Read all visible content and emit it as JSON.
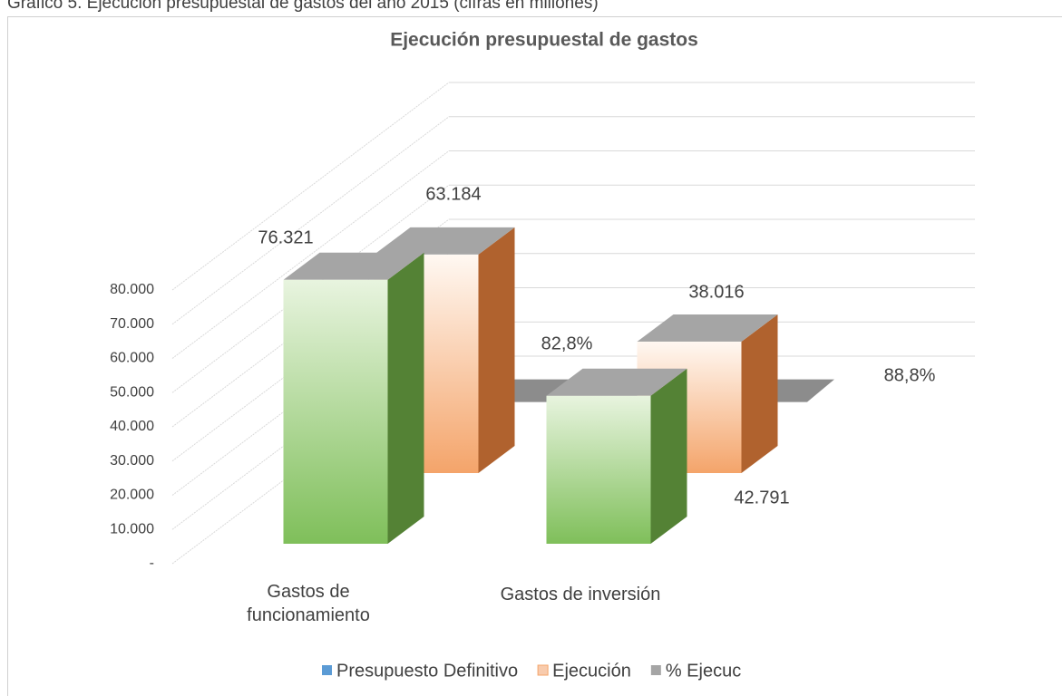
{
  "caption": "Gráfico 5. Ejecución presupuestal de gastos del año 2015 (cifras en millones)",
  "chart_data": {
    "type": "bar3d",
    "title": "Ejecución presupuestal de gastos",
    "categories": [
      "Gastos de funcionamiento",
      "Gastos de inversión"
    ],
    "series": [
      {
        "name": "Presupuesto Definitivo",
        "color": "#7fbf5a",
        "legend_color": "#5b9bd5",
        "values": [
          76321,
          42791
        ],
        "value_labels": [
          "76.321",
          "42.791"
        ]
      },
      {
        "name": "Ejecución",
        "color": "#f4a46a",
        "legend_color": "#f8cbad",
        "values": [
          63184,
          38016
        ],
        "value_labels": [
          "63.184",
          "38.016"
        ]
      },
      {
        "name": "% Ejecuc",
        "color": "#8c8c8c",
        "legend_color": "#a5a5a5",
        "values": [
          82.8,
          88.8
        ],
        "value_labels": [
          "82,8%",
          "88,8%"
        ]
      }
    ],
    "ylim": [
      0,
      80000
    ],
    "yticks": [
      {
        "value": 0,
        "label": "-"
      },
      {
        "value": 10000,
        "label": "10.000"
      },
      {
        "value": 20000,
        "label": "20.000"
      },
      {
        "value": 30000,
        "label": "30.000"
      },
      {
        "value": 40000,
        "label": "40.000"
      },
      {
        "value": 50000,
        "label": "50.000"
      },
      {
        "value": 60000,
        "label": "60.000"
      },
      {
        "value": 70000,
        "label": "70.000"
      },
      {
        "value": 80000,
        "label": "80.000"
      }
    ],
    "grid": true,
    "legend": "bottom"
  }
}
